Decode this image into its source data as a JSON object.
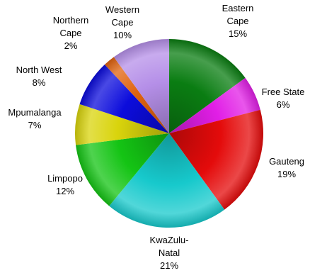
{
  "chart_data": {
    "type": "pie",
    "title": "",
    "start_angle_deg": 0,
    "direction": "clockwise",
    "slices": [
      {
        "name": "Eastern Cape",
        "label_lines": [
          "Eastern",
          "Cape",
          "15%"
        ],
        "value": 15,
        "color": "#0a7d12"
      },
      {
        "name": "Free State",
        "label_lines": [
          "Free State",
          "6%"
        ],
        "value": 6,
        "color": "#e11ee6"
      },
      {
        "name": "Gauteng",
        "label_lines": [
          "Gauteng",
          "19%"
        ],
        "value": 19,
        "color": "#e40b0b"
      },
      {
        "name": "KwaZulu-Natal",
        "label_lines": [
          "KwaZulu-",
          "Natal",
          "21%"
        ],
        "value": 21,
        "color": "#17c9cc"
      },
      {
        "name": "Limpopo",
        "label_lines": [
          "Limpopo",
          "12%"
        ],
        "value": 12,
        "color": "#14c414"
      },
      {
        "name": "Mpumalanga",
        "label_lines": [
          "Mpumalanga",
          "7%"
        ],
        "value": 7,
        "color": "#d9d40c"
      },
      {
        "name": "North West",
        "label_lines": [
          "North West",
          "8%"
        ],
        "value": 8,
        "color": "#0c0cdc"
      },
      {
        "name": "Northern Cape",
        "label_lines": [
          "Northern",
          "Cape",
          "2%"
        ],
        "value": 2,
        "color": "#e0630f"
      },
      {
        "name": "Western Cape",
        "label_lines": [
          "Western",
          "Cape",
          "10%"
        ],
        "value": 10,
        "color": "#b58fe8"
      }
    ]
  }
}
